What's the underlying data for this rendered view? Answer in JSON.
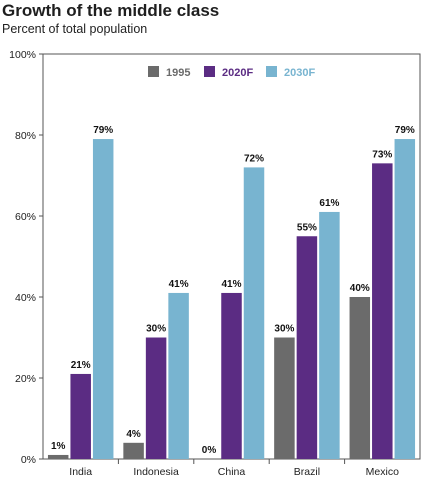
{
  "chart_data": {
    "type": "bar",
    "title": "Growth of the middle class",
    "subtitle": "Percent of total population",
    "categories": [
      "India",
      "Indonesia",
      "China",
      "Brazil",
      "Mexico"
    ],
    "series": [
      {
        "name": "1995",
        "color": "#6b6b6b",
        "values": [
          1,
          4,
          0,
          30,
          40
        ],
        "labels": [
          "1%",
          "4%",
          "0%",
          "30%",
          "40%"
        ]
      },
      {
        "name": "2020F",
        "color": "#5b2c83",
        "values": [
          21,
          30,
          41,
          55,
          73
        ],
        "labels": [
          "21%",
          "30%",
          "41%",
          "55%",
          "73%"
        ]
      },
      {
        "name": "2030F",
        "color": "#78b4d0",
        "values": [
          79,
          41,
          72,
          61,
          79
        ],
        "labels": [
          "79%",
          "41%",
          "72%",
          "61%",
          "79%"
        ]
      }
    ],
    "ylim": [
      0,
      100
    ],
    "yticks": [
      0,
      20,
      40,
      60,
      80,
      100
    ],
    "ytick_labels": [
      "0%",
      "20%",
      "40%",
      "60%",
      "80%",
      "100%"
    ],
    "legend_position": "top-center",
    "grid": false
  }
}
